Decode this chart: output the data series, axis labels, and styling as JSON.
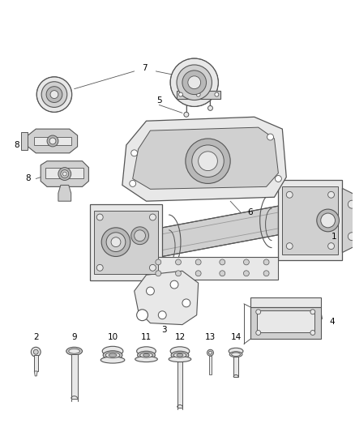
{
  "background_color": "#ffffff",
  "fig_width": 4.38,
  "fig_height": 5.33,
  "dpi": 100,
  "line_color": "#555555",
  "text_color": "#000000",
  "label_fontsize": 7.5,
  "shade_light": "#e8e8e8",
  "shade_mid": "#d0d0d0",
  "shade_dark": "#b8b8b8"
}
